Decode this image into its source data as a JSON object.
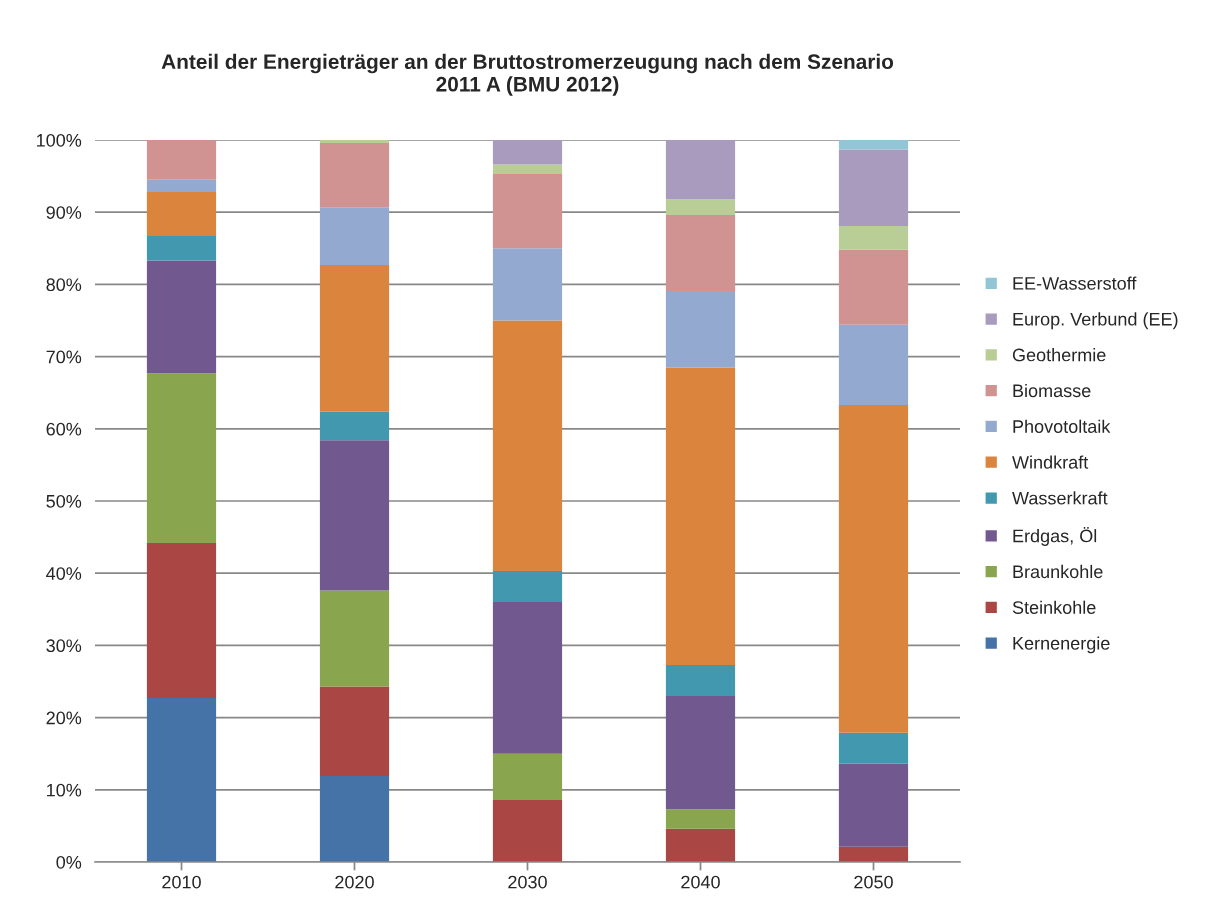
{
  "chart_data": {
    "type": "bar",
    "stacked": true,
    "title": "Anteil der Energieträger an der Bruttostromerzeugung nach dem Szenario\n2011 A (BMU 2012)",
    "categories": [
      "2010",
      "2020",
      "2030",
      "2040",
      "2050"
    ],
    "series": [
      {
        "name": "Kernenergie",
        "color": "#4572a7",
        "values": [
          22.7,
          11.9,
          0,
          0,
          0
        ]
      },
      {
        "name": "Steinkohle",
        "color": "#aa4643",
        "values": [
          21.5,
          12.4,
          8.6,
          4.6,
          2.1
        ]
      },
      {
        "name": "Braunkohle",
        "color": "#89a54e",
        "values": [
          23.5,
          13.3,
          6.4,
          2.7,
          0
        ]
      },
      {
        "name": "Erdgas, Öl",
        "color": "#71588f",
        "values": [
          15.6,
          20.8,
          21.0,
          15.7,
          11.5
        ]
      },
      {
        "name": "Wasserkraft",
        "color": "#4198af",
        "values": [
          3.4,
          4.0,
          4.3,
          4.3,
          4.3
        ]
      },
      {
        "name": "Windkraft",
        "color": "#db843d",
        "values": [
          6.1,
          20.3,
          34.7,
          41.2,
          45.4
        ]
      },
      {
        "name": "Phovotoltaik",
        "color": "#93a9cf",
        "values": [
          1.7,
          8.0,
          10.0,
          10.6,
          11.1
        ]
      },
      {
        "name": "Biomasse",
        "color": "#d19392",
        "values": [
          5.5,
          8.9,
          10.3,
          10.5,
          10.4
        ]
      },
      {
        "name": "Geothermie",
        "color": "#b9cd96",
        "values": [
          0,
          0.4,
          1.3,
          2.2,
          3.3
        ]
      },
      {
        "name": "Europ. Verbund (EE)",
        "color": "#a99bbd",
        "values": [
          0,
          0,
          3.4,
          8.2,
          10.6
        ]
      },
      {
        "name": "EE-Wasserstoff",
        "color": "#92c5d6",
        "values": [
          0,
          0,
          0,
          0,
          1.3
        ]
      }
    ],
    "ylim": [
      0,
      100
    ],
    "yticks": [
      {
        "value": 0,
        "label": "0%"
      },
      {
        "value": 10,
        "label": "10%"
      },
      {
        "value": 20,
        "label": "20%"
      },
      {
        "value": 30,
        "label": "30%"
      },
      {
        "value": 40,
        "label": "40%"
      },
      {
        "value": 50,
        "label": "50%"
      },
      {
        "value": 60,
        "label": "60%"
      },
      {
        "value": 70,
        "label": "70%"
      },
      {
        "value": 80,
        "label": "80%"
      },
      {
        "value": 90,
        "label": "90%"
      },
      {
        "value": 100,
        "label": "100%"
      }
    ],
    "grid": "y",
    "legend": "right"
  }
}
